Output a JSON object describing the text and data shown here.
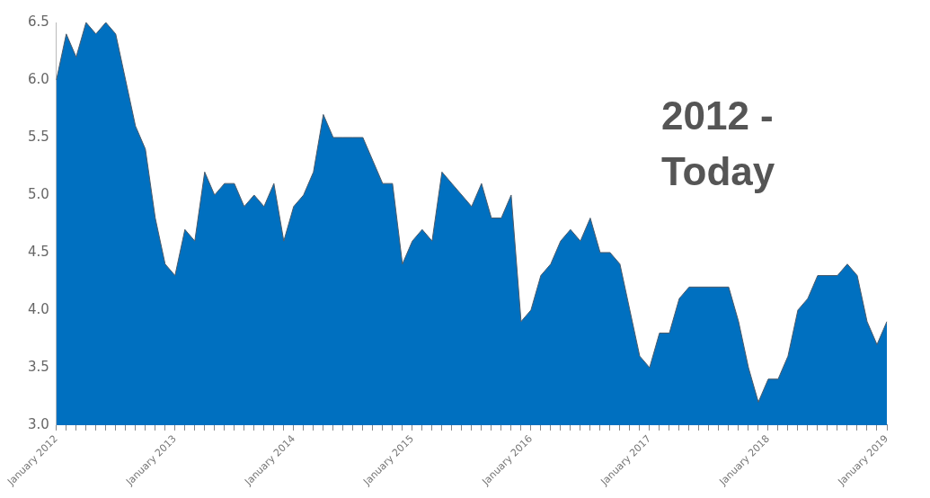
{
  "chart_data": {
    "type": "area",
    "annotations": [
      "2012 - Today"
    ],
    "categories": [
      "January 2012",
      null,
      null,
      null,
      null,
      null,
      null,
      null,
      null,
      null,
      null,
      null,
      "January 2013",
      null,
      null,
      null,
      null,
      null,
      null,
      null,
      null,
      null,
      null,
      null,
      "January 2014",
      null,
      null,
      null,
      null,
      null,
      null,
      null,
      null,
      null,
      null,
      null,
      "January 2015",
      null,
      null,
      null,
      null,
      null,
      null,
      null,
      null,
      null,
      null,
      null,
      "January 2016",
      null,
      null,
      null,
      null,
      null,
      null,
      null,
      null,
      null,
      null,
      null,
      "January 2017",
      null,
      null,
      null,
      null,
      null,
      null,
      null,
      null,
      null,
      null,
      null,
      "January 2018",
      null,
      null,
      null,
      null,
      null,
      null,
      null,
      null,
      null,
      null,
      null,
      "January 2019"
    ],
    "series": [
      {
        "color": "#0070c0",
        "values": [
          6.0,
          6.4,
          6.2,
          6.5,
          6.4,
          6.5,
          6.4,
          6.0,
          5.6,
          5.4,
          4.8,
          4.4,
          4.3,
          4.7,
          4.6,
          5.2,
          5.0,
          5.1,
          5.1,
          4.9,
          5.0,
          4.9,
          5.1,
          4.6,
          4.9,
          5.0,
          5.2,
          5.7,
          5.5,
          5.5,
          5.5,
          5.5,
          5.3,
          5.1,
          5.1,
          4.4,
          4.6,
          4.7,
          4.6,
          5.2,
          5.1,
          5.0,
          4.9,
          5.1,
          4.8,
          4.8,
          5.0,
          3.9,
          4.0,
          4.3,
          4.4,
          4.6,
          4.7,
          4.6,
          4.8,
          4.5,
          4.5,
          4.4,
          4.0,
          3.6,
          3.5,
          3.8,
          3.8,
          4.1,
          4.2,
          4.2,
          4.2,
          4.2,
          4.2,
          3.9,
          3.5,
          3.2,
          3.4,
          3.4,
          3.6,
          4.0,
          4.1,
          4.3,
          4.3,
          4.3,
          4.4,
          4.3,
          3.9,
          3.7,
          3.9
        ]
      }
    ],
    "ylim": [
      3.0,
      6.5
    ],
    "yticks": [
      {
        "value": 3.0,
        "label": "3.0"
      },
      3.5,
      {
        "value": 4.0,
        "label": "4.0"
      },
      4.5,
      {
        "value": 5.0,
        "label": "5.0"
      },
      5.5,
      {
        "value": 6.0,
        "label": "6.0"
      },
      6.5
    ],
    "grid": false,
    "legend": false
  }
}
